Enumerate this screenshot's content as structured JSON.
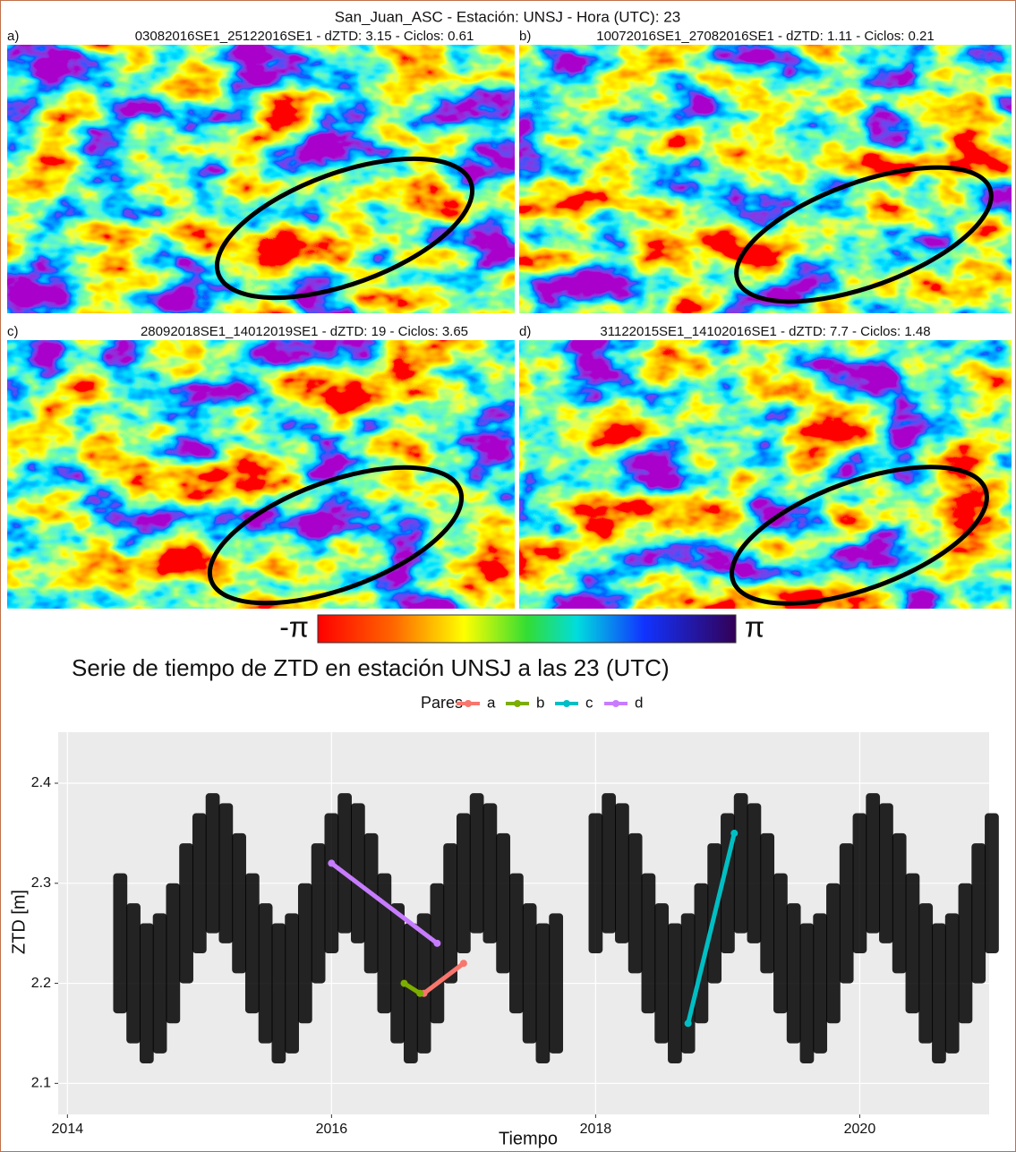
{
  "figure": {
    "title": "San_Juan_ASC - Estación: UNSJ - Hora (UTC): 23",
    "panels": [
      {
        "label": "a)",
        "title": "03082016SE1_25122016SE1 - dZTD: 3.15 - Ciclos: 0.61"
      },
      {
        "label": "b)",
        "title": "10072016SE1_27082016SE1 - dZTD: 1.11 - Ciclos: 0.21"
      },
      {
        "label": "c)",
        "title": "28092018SE1_14012019SE1 - dZTD: 19 - Ciclos: 3.65"
      },
      {
        "label": "d)",
        "title": "31122015SE1_14102016SE1 - dZTD: 7.7 - Ciclos: 1.48"
      }
    ],
    "colorbar": {
      "min_label": "-π",
      "max_label": "π"
    }
  },
  "chart_data": {
    "type": "scatter",
    "title": "Serie de tiempo de ZTD en estación UNSJ a las 23 (UTC)",
    "xlabel": "Tiempo",
    "ylabel": "ZTD [m]",
    "legend_title": "Pares",
    "xlim": [
      2013.93,
      2020.98
    ],
    "ylim": [
      2.069,
      2.451
    ],
    "xticks": [
      2014,
      2016,
      2018,
      2020
    ],
    "yticks": [
      2.1,
      2.2,
      2.3,
      2.4
    ],
    "grid": true,
    "points": {
      "color": "#000000",
      "x": [
        2014.4,
        2014.5,
        2014.6,
        2014.7,
        2014.8,
        2014.9,
        2015.0,
        2015.1,
        2015.2,
        2015.3,
        2015.4,
        2015.5,
        2015.6,
        2015.7,
        2015.8,
        2015.9,
        2016.0,
        2016.1,
        2016.2,
        2016.3,
        2016.4,
        2016.5,
        2016.6,
        2016.7,
        2016.8,
        2016.9,
        2017.0,
        2017.1,
        2017.2,
        2017.3,
        2017.4,
        2017.5,
        2017.6,
        2017.7,
        2017.8,
        2017.9,
        2018.0,
        2018.1,
        2018.2,
        2018.3,
        2018.4,
        2018.5,
        2018.6,
        2018.7,
        2018.8,
        2018.9,
        2019.0,
        2019.1,
        2019.2,
        2019.3,
        2019.4,
        2019.5,
        2019.6,
        2019.7,
        2019.8,
        2019.9,
        2020.0,
        2020.1,
        2020.2,
        2020.3,
        2020.4,
        2020.5,
        2020.6,
        2020.7,
        2020.8,
        2020.9,
        2021.0
      ],
      "low": [
        2.17,
        2.14,
        2.12,
        2.13,
        2.16,
        2.2,
        2.23,
        2.25,
        2.24,
        2.21,
        2.17,
        2.14,
        2.12,
        2.13,
        2.16,
        2.2,
        2.23,
        2.25,
        2.24,
        2.21,
        2.17,
        2.14,
        2.12,
        2.13,
        2.16,
        2.2,
        2.23,
        2.25,
        2.24,
        2.21,
        2.17,
        2.14,
        2.12,
        2.13,
        null,
        null,
        2.23,
        2.25,
        2.24,
        2.21,
        2.17,
        2.14,
        2.12,
        2.13,
        2.16,
        2.2,
        2.23,
        2.25,
        2.24,
        2.21,
        2.17,
        2.14,
        2.12,
        2.13,
        2.16,
        2.2,
        2.23,
        2.25,
        2.24,
        2.21,
        2.17,
        2.14,
        2.12,
        2.13,
        2.16,
        2.2,
        2.23
      ],
      "high": [
        2.31,
        2.28,
        2.26,
        2.27,
        2.3,
        2.34,
        2.37,
        2.39,
        2.38,
        2.35,
        2.31,
        2.28,
        2.26,
        2.27,
        2.3,
        2.34,
        2.37,
        2.39,
        2.38,
        2.35,
        2.31,
        2.28,
        2.26,
        2.27,
        2.3,
        2.34,
        2.37,
        2.39,
        2.38,
        2.35,
        2.31,
        2.28,
        2.26,
        2.27,
        null,
        null,
        2.37,
        2.39,
        2.38,
        2.35,
        2.31,
        2.28,
        2.26,
        2.27,
        2.3,
        2.34,
        2.37,
        2.39,
        2.38,
        2.35,
        2.31,
        2.28,
        2.26,
        2.27,
        2.3,
        2.34,
        2.37,
        2.39,
        2.38,
        2.35,
        2.31,
        2.28,
        2.26,
        2.27,
        2.3,
        2.34,
        2.37
      ]
    },
    "series": [
      {
        "name": "a",
        "color": "#F8766D",
        "x": [
          2016.7,
          2017.0
        ],
        "values": [
          2.19,
          2.22
        ]
      },
      {
        "name": "b",
        "color": "#7CAE00",
        "x": [
          2016.55,
          2016.67
        ],
        "values": [
          2.2,
          2.19
        ]
      },
      {
        "name": "c",
        "color": "#00BFC4",
        "x": [
          2018.7,
          2019.05
        ],
        "values": [
          2.16,
          2.35
        ]
      },
      {
        "name": "d",
        "color": "#C77CFF",
        "x": [
          2016.0,
          2016.8
        ],
        "values": [
          2.32,
          2.24
        ]
      }
    ]
  }
}
